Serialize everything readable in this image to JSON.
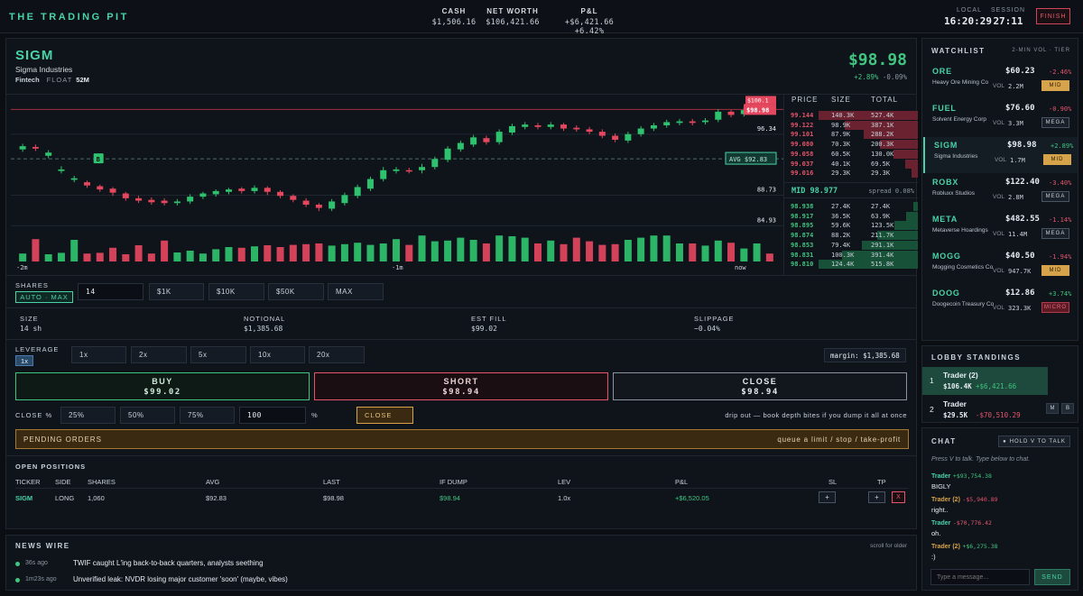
{
  "brand": "THE TRADING PIT",
  "stats": {
    "cash_label": "CASH",
    "cash": "$1,506.16",
    "networth_label": "NET WORTH",
    "networth": "$106,421.66",
    "pnl_label": "P&L",
    "pnl": "+$6,421.66 +6.42%"
  },
  "clock": {
    "local_label": "LOCAL",
    "local": "16:20:29",
    "session_label": "SESSION",
    "session": "27:11"
  },
  "finish_label": "FINISH",
  "ticker": {
    "symbol": "SIGM",
    "company": "Sigma Industries",
    "sector": "Fintech",
    "float_label": "FLOAT",
    "float": "52M",
    "price": "$98.98",
    "change_pct": "+2.89%",
    "change_small": "-0.09%"
  },
  "chart_data": {
    "type": "candlestick",
    "price_levels": [
      96.34,
      88.73,
      84.93
    ],
    "current_tag": "$98.98",
    "top_tag": "$100.1",
    "avg_tag": "AVG $92.83",
    "avg_price": 92.83,
    "marker_label": "B",
    "x_ticks": [
      "-2m",
      "-1m",
      "now"
    ],
    "candles": [
      [
        94.0,
        94.4,
        94.7,
        93.7
      ],
      [
        94.3,
        94.1,
        94.6,
        93.8
      ],
      [
        93.2,
        93.6,
        93.9,
        92.9
      ],
      [
        91.3,
        91.5,
        91.9,
        91.0
      ],
      [
        90.2,
        90.4,
        90.7,
        89.9
      ],
      [
        89.9,
        89.5,
        90.1,
        89.2
      ],
      [
        89.4,
        89.0,
        89.6,
        88.7
      ],
      [
        89.1,
        88.6,
        89.3,
        88.2
      ],
      [
        88.5,
        87.9,
        88.7,
        87.6
      ],
      [
        87.9,
        87.6,
        88.2,
        87.3
      ],
      [
        87.7,
        87.4,
        88.0,
        87.1
      ],
      [
        87.6,
        87.3,
        87.9,
        87.0
      ],
      [
        87.3,
        87.5,
        87.8,
        87.0
      ],
      [
        87.5,
        88.1,
        88.4,
        87.2
      ],
      [
        88.1,
        88.5,
        88.7,
        87.8
      ],
      [
        88.4,
        88.8,
        89.0,
        88.1
      ],
      [
        88.7,
        89.0,
        89.2,
        88.4
      ],
      [
        89.1,
        88.8,
        89.3,
        88.5
      ],
      [
        88.8,
        89.2,
        89.5,
        88.5
      ],
      [
        89.2,
        88.7,
        89.4,
        88.3
      ],
      [
        88.7,
        88.2,
        88.9,
        87.9
      ],
      [
        88.2,
        87.7,
        88.4,
        87.4
      ],
      [
        87.6,
        87.1,
        87.9,
        86.8
      ],
      [
        87.1,
        86.7,
        87.3,
        86.3
      ],
      [
        86.6,
        87.5,
        87.8,
        86.3
      ],
      [
        87.3,
        88.3,
        88.6,
        87.0
      ],
      [
        88.2,
        89.3,
        89.6,
        87.9
      ],
      [
        89.1,
        90.3,
        90.6,
        88.8
      ],
      [
        90.3,
        91.4,
        91.8,
        90.0
      ],
      [
        91.3,
        91.5,
        91.8,
        91.0
      ],
      [
        91.4,
        91.3,
        91.7,
        91.0
      ],
      [
        91.4,
        91.8,
        92.2,
        91.0
      ],
      [
        91.8,
        92.8,
        93.1,
        91.5
      ],
      [
        92.7,
        94.1,
        94.4,
        92.4
      ],
      [
        94.0,
        94.8,
        95.1,
        93.7
      ],
      [
        94.6,
        95.5,
        95.8,
        94.3
      ],
      [
        95.4,
        94.9,
        95.7,
        94.6
      ],
      [
        94.9,
        96.2,
        96.5,
        94.6
      ],
      [
        96.1,
        96.9,
        97.2,
        95.8
      ],
      [
        96.8,
        97.1,
        97.4,
        96.5
      ],
      [
        97.0,
        96.8,
        97.3,
        96.5
      ],
      [
        96.8,
        97.1,
        97.4,
        96.5
      ],
      [
        97.1,
        96.6,
        97.3,
        96.3
      ],
      [
        96.7,
        96.5,
        97.0,
        96.2
      ],
      [
        96.5,
        96.2,
        96.8,
        95.9
      ],
      [
        96.2,
        95.7,
        96.5,
        95.4
      ],
      [
        95.7,
        95.2,
        96.0,
        94.9
      ],
      [
        95.1,
        95.9,
        96.2,
        94.8
      ],
      [
        95.9,
        96.6,
        96.9,
        95.6
      ],
      [
        96.6,
        97.0,
        97.3,
        96.3
      ],
      [
        97.0,
        97.4,
        97.7,
        96.7
      ],
      [
        97.3,
        97.5,
        97.8,
        97.0
      ],
      [
        97.5,
        97.3,
        97.8,
        97.0
      ],
      [
        97.4,
        97.6,
        97.9,
        97.1
      ],
      [
        97.7,
        98.7,
        99.0,
        97.4
      ],
      [
        98.7,
        98.3,
        98.9,
        98.0
      ],
      [
        98.4,
        98.9,
        99.3,
        98.1
      ],
      [
        98.9,
        99.1,
        99.4,
        98.6
      ],
      [
        99.1,
        98.98,
        99.2,
        98.8
      ]
    ],
    "volumes": [
      0.22,
      0.62,
      0.2,
      0.24,
      0.6,
      0.22,
      0.24,
      0.38,
      0.2,
      0.45,
      0.22,
      0.58,
      0.25,
      0.3,
      0.22,
      0.34,
      0.4,
      0.38,
      0.42,
      0.45,
      0.4,
      0.46,
      0.48,
      0.5,
      0.44,
      0.48,
      0.52,
      0.46,
      0.5,
      0.62,
      0.46,
      0.72,
      0.56,
      0.58,
      0.66,
      0.6,
      0.5,
      0.72,
      0.7,
      0.66,
      0.5,
      0.58,
      0.48,
      0.66,
      0.56,
      0.46,
      0.48,
      0.6,
      0.66,
      0.72,
      0.72,
      0.5,
      0.5,
      0.44,
      0.58,
      0.52,
      0.36,
      0.5,
      0.22
    ]
  },
  "book": {
    "headers": [
      "PRICE",
      "SIZE",
      "TOTAL"
    ],
    "asks": [
      {
        "price": "99.144",
        "size": "140.3K",
        "total": "527.4K",
        "depth": 1.0
      },
      {
        "price": "99.122",
        "size": "98.9K",
        "total": "387.1K",
        "depth": 0.74
      },
      {
        "price": "99.101",
        "size": "87.9K",
        "total": "288.2K",
        "depth": 0.55
      },
      {
        "price": "99.080",
        "size": "70.3K",
        "total": "200.3K",
        "depth": 0.38
      },
      {
        "price": "99.058",
        "size": "60.5K",
        "total": "130.0K",
        "depth": 0.25
      },
      {
        "price": "99.037",
        "size": "40.1K",
        "total": "69.5K",
        "depth": 0.13
      },
      {
        "price": "99.016",
        "size": "29.3K",
        "total": "29.3K",
        "depth": 0.06
      }
    ],
    "mid_label": "MID 98.977",
    "spread_label": "spread 0.08%",
    "bids": [
      {
        "price": "98.938",
        "size": "27.4K",
        "total": "27.4K",
        "depth": 0.05
      },
      {
        "price": "98.917",
        "size": "36.5K",
        "total": "63.9K",
        "depth": 0.12
      },
      {
        "price": "98.895",
        "size": "59.6K",
        "total": "123.5K",
        "depth": 0.24
      },
      {
        "price": "98.874",
        "size": "88.2K",
        "total": "211.7K",
        "depth": 0.41
      },
      {
        "price": "98.853",
        "size": "79.4K",
        "total": "291.1K",
        "depth": 0.56
      },
      {
        "price": "98.831",
        "size": "100.3K",
        "total": "391.4K",
        "depth": 0.76
      },
      {
        "price": "98.810",
        "size": "124.4K",
        "total": "515.8K",
        "depth": 1.0
      }
    ]
  },
  "order": {
    "shares_label": "SHARES",
    "auto_max": "AUTO · MAX",
    "shares_value": "14",
    "quick": [
      "$1K",
      "$10K",
      "$50K",
      "MAX"
    ],
    "size_label": "SIZE",
    "size": "14 sh",
    "notional_label": "NOTIONAL",
    "notional": "$1,385.68",
    "fill_label": "EST FILL",
    "fill": "$99.02",
    "slip_label": "SLIPPAGE",
    "slip": "−0.04%",
    "lev_label": "LEVERAGE",
    "lev_active": "1x",
    "lev_opts": [
      "1x",
      "2x",
      "5x",
      "10x",
      "20x"
    ],
    "margin": "margin: $1,385.68",
    "buy": "BUY",
    "buy_px": "$99.02",
    "short": "SHORT",
    "short_px": "$98.94",
    "close": "CLOSE",
    "close_px": "$98.94",
    "closepct_label": "CLOSE %",
    "close_opts": [
      "25%",
      "50%",
      "75%"
    ],
    "close_value": "100",
    "pct": "%",
    "close_btn": "CLOSE",
    "drip_note": "drip out — book depth bites if you dump it all at once",
    "pending": "PENDING ORDERS",
    "pending_hint": "queue a limit / stop / take-profit"
  },
  "positions": {
    "title": "OPEN POSITIONS",
    "headers": [
      "TICKER",
      "SIDE",
      "SHARES",
      "AVG",
      "LAST",
      "IF DUMP",
      "LEV",
      "P&L",
      "SL",
      "TP"
    ],
    "row": {
      "ticker": "SIGM",
      "side": "LONG",
      "shares": "1,060",
      "avg": "$92.83",
      "last": "$98.98",
      "dump": "$98.94",
      "lev": "1.0x",
      "pnl": "+$6,520.05",
      "sl": "+",
      "tp": "+",
      "x": "X"
    }
  },
  "news": {
    "title": "NEWS WIRE",
    "hint": "scroll for older",
    "items": [
      {
        "time": "36s ago",
        "text": "TWIF caught L'ing back-to-back quarters, analysts seething"
      },
      {
        "time": "1m23s ago",
        "text": "Unverified leak: NVDR losing major customer 'soon' (maybe, vibes)"
      }
    ]
  },
  "watchlist": {
    "title": "WATCHLIST",
    "sub": "2-MIN VOL · TIER",
    "items": [
      {
        "t": "ORE",
        "n": "Heavy Ore Mining Co",
        "p": "$60.23",
        "c": "-2.46%",
        "v": "2.2M",
        "tier": "MID",
        "up": false
      },
      {
        "t": "FUEL",
        "n": "Solvent Energy Corp",
        "p": "$76.60",
        "c": "-0.90%",
        "v": "3.3M",
        "tier": "MEGA",
        "up": false
      },
      {
        "t": "SIGM",
        "n": "Sigma Industries",
        "p": "$98.98",
        "c": "+2.89%",
        "v": "1.7M",
        "tier": "MID",
        "up": true
      },
      {
        "t": "ROBX",
        "n": "Robluxx Studios",
        "p": "$122.40",
        "c": "-3.40%",
        "v": "2.8M",
        "tier": "MEGA",
        "up": false
      },
      {
        "t": "META",
        "n": "Metaverse Hoardings",
        "p": "$482.55",
        "c": "-1.14%",
        "v": "11.4M",
        "tier": "MEGA",
        "up": false
      },
      {
        "t": "MOGG",
        "n": "Mogging Cosmetics Co",
        "p": "$40.50",
        "c": "-1.94%",
        "v": "947.7K",
        "tier": "MID",
        "up": false
      },
      {
        "t": "DOOG",
        "n": "Doogecoin Treasury Co",
        "p": "$12.86",
        "c": "+3.74%",
        "v": "323.3K",
        "tier": "MICRO",
        "up": true
      }
    ],
    "vol_label": "VOL"
  },
  "lobby": {
    "title": "LOBBY STANDINGS",
    "rows": [
      {
        "rank": "1",
        "name": "Trader (2)",
        "worth": "$106.4K",
        "pnl": "+$6,421.66"
      },
      {
        "rank": "2",
        "name": "Trader",
        "worth": "$29.5K",
        "pnl": "-$70,510.29",
        "b1": "M",
        "b2": "B"
      }
    ]
  },
  "chat": {
    "title": "CHAT",
    "hold": "HOLD V TO TALK",
    "hint": "Press V to talk. Type below to chat.",
    "msgs": [
      {
        "user": "Trader",
        "pnl": "+$93,754.38",
        "text": "BIGLY"
      },
      {
        "user": "Trader (2)",
        "pnl": "-$5,940.89",
        "text": "right.."
      },
      {
        "user": "Trader",
        "pnl": "-$70,776.42",
        "text": "oh."
      },
      {
        "user": "Trader (2)",
        "pnl": "+$6,275.38",
        "text": ":)"
      }
    ],
    "placeholder": "Type a message...",
    "send": "SEND"
  },
  "colors": {
    "accent": "#49d3a7",
    "up": "#3fc57f",
    "down": "#e5546a",
    "gold": "#d6a34a"
  }
}
